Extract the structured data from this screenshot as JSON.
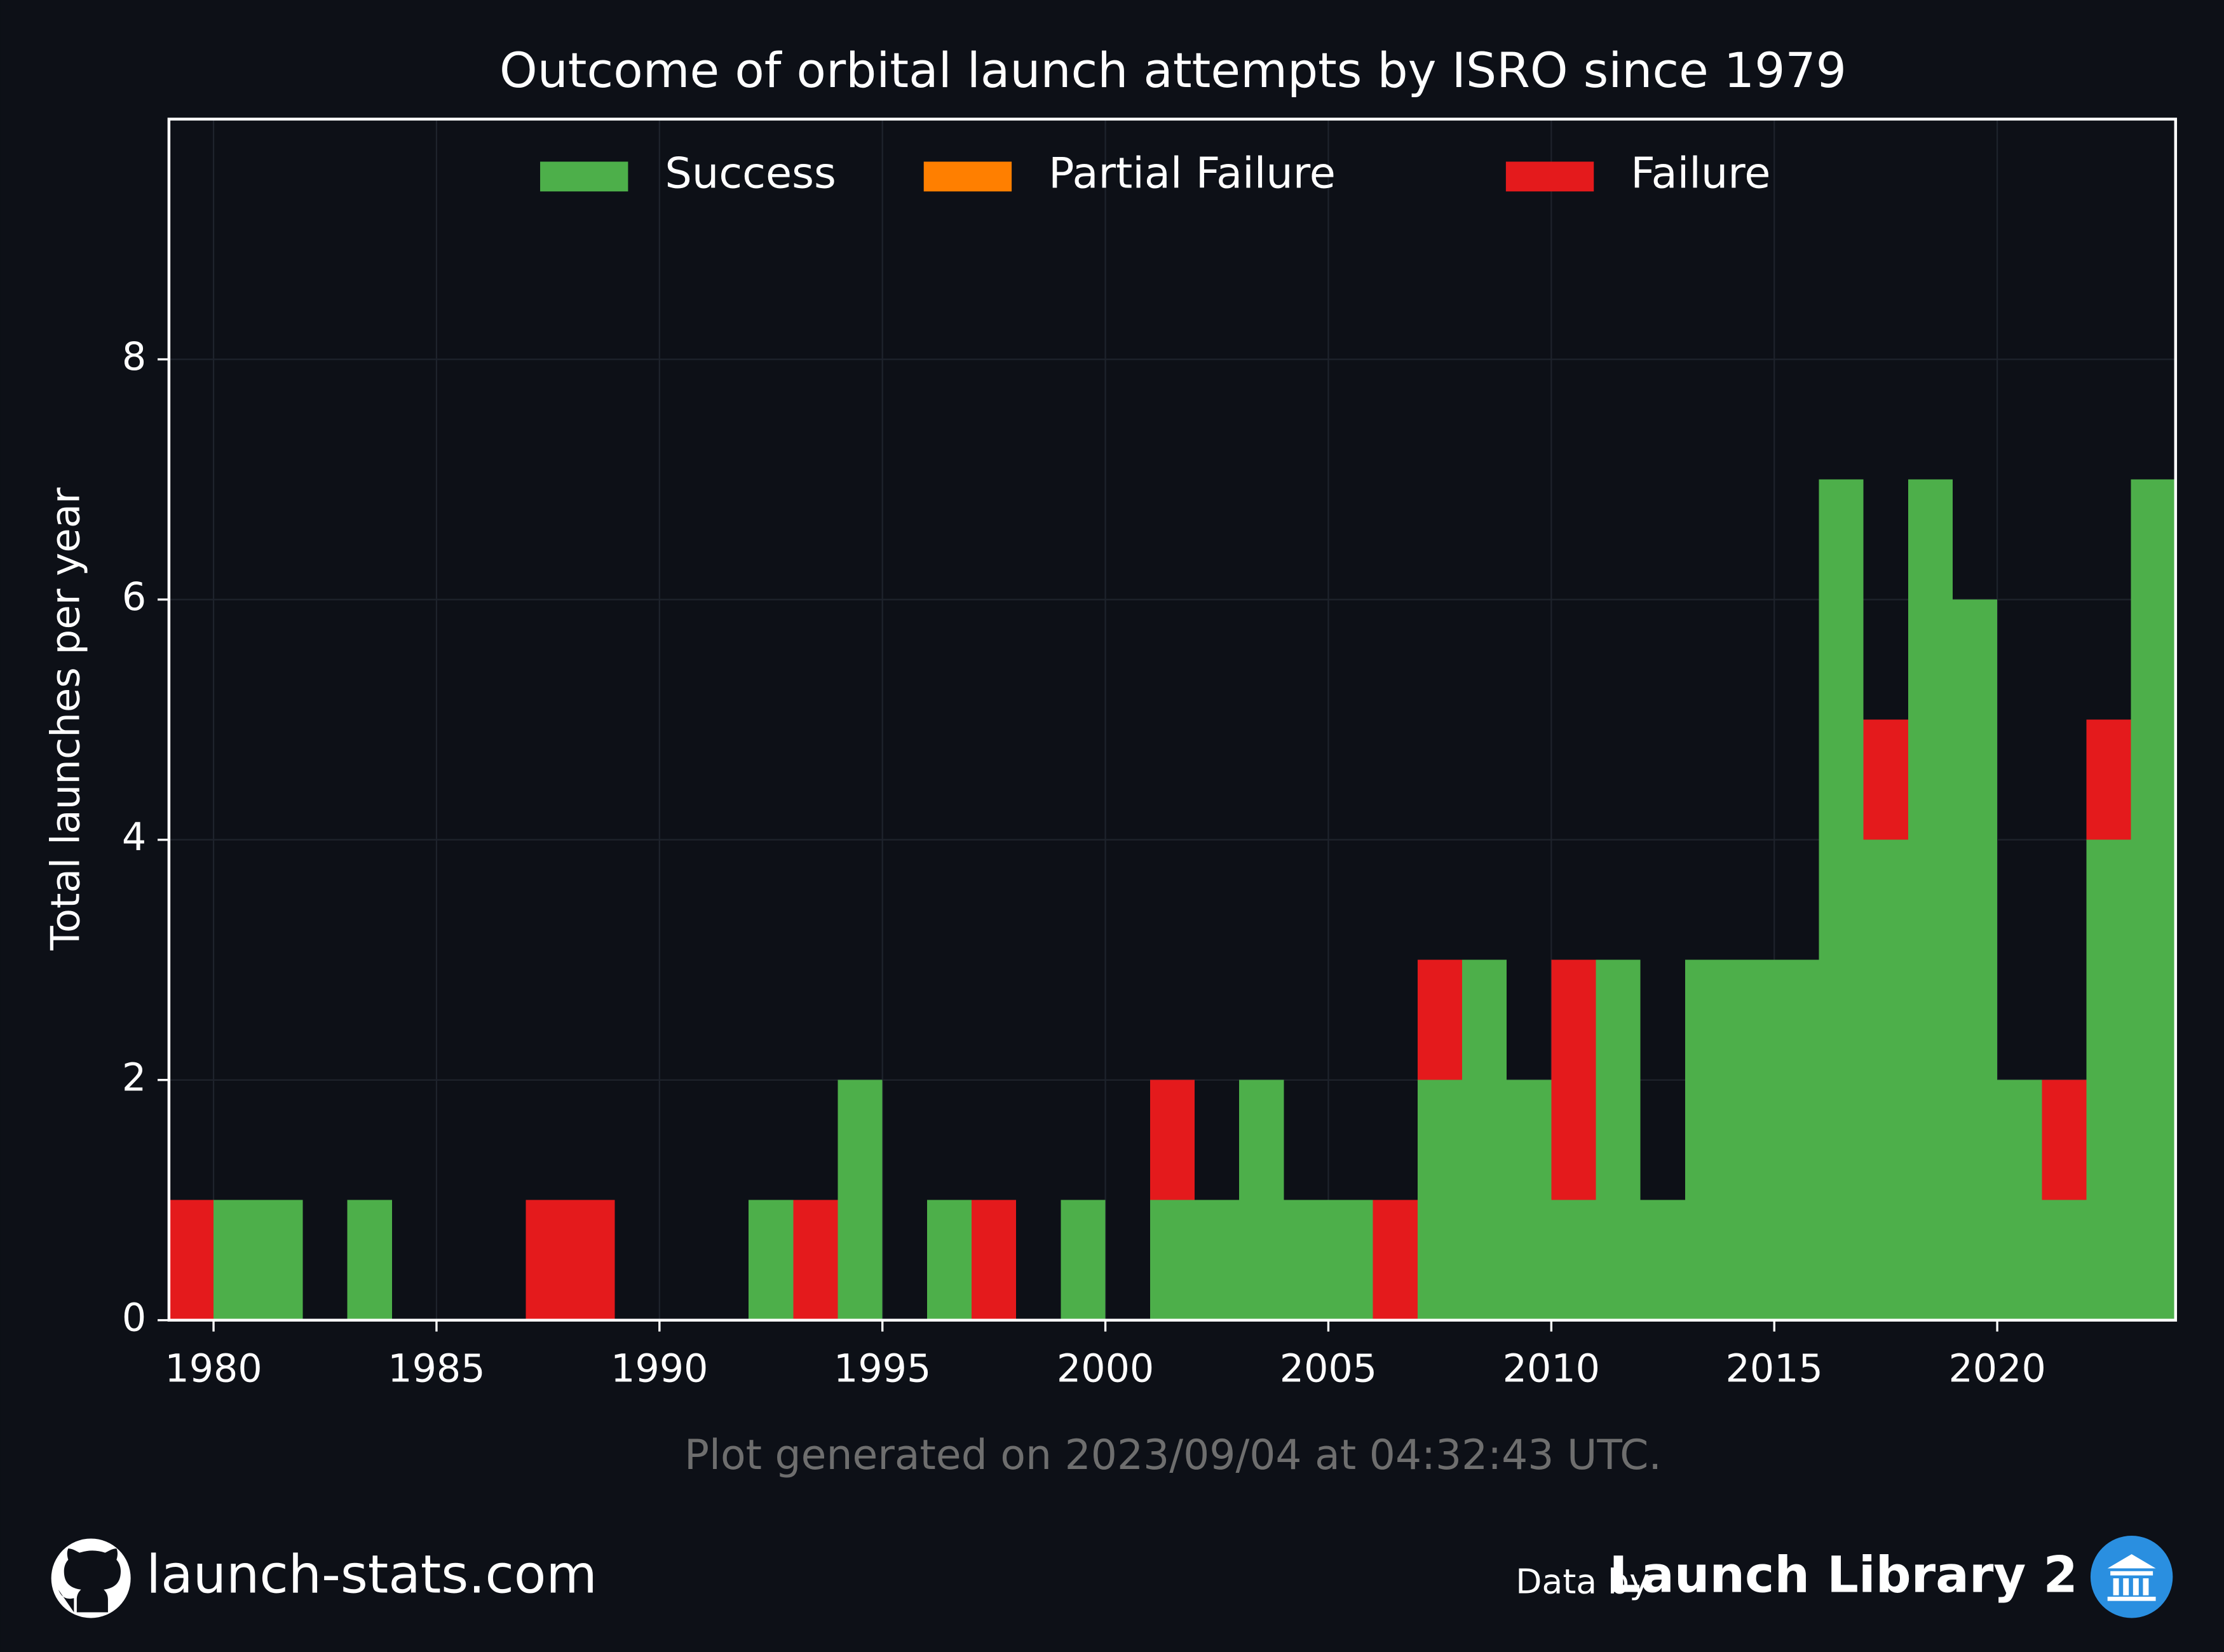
{
  "chart_data": {
    "type": "histogram",
    "title": "Outcome of orbital launch attempts by ISRO since 1979",
    "ylabel": "Total launches per year",
    "note": "Plot generated on 2023/09/04 at 04:32:43 UTC.",
    "bins": [
      1979,
      1980,
      1981,
      1982,
      1983,
      1984,
      1985,
      1986,
      1987,
      1988,
      1989,
      1990,
      1991,
      1992,
      1993,
      1994,
      1995,
      1996,
      1997,
      1998,
      1999,
      2000,
      2001,
      2002,
      2003,
      2004,
      2005,
      2006,
      2007,
      2008,
      2009,
      2010,
      2011,
      2012,
      2013,
      2014,
      2015,
      2016,
      2017,
      2018,
      2019,
      2020,
      2021,
      2022,
      2023,
      2024
    ],
    "series": [
      {
        "name": "Success",
        "color": "#4daf4a",
        "values": [
          0,
          1,
          1,
          0,
          1,
          0,
          0,
          0,
          0,
          0,
          0,
          0,
          0,
          1,
          0,
          2,
          0,
          1,
          0,
          0,
          1,
          0,
          1,
          1,
          2,
          1,
          1,
          0,
          2,
          3,
          2,
          1,
          3,
          1,
          3,
          3,
          3,
          7,
          4,
          7,
          6,
          2,
          1,
          4,
          7
        ]
      },
      {
        "name": "Partial Failure",
        "color": "#ff7f00",
        "values": [
          0,
          0,
          0,
          0,
          0,
          0,
          0,
          0,
          0,
          0,
          0,
          0,
          0,
          0,
          0,
          0,
          0,
          0,
          0,
          0,
          0,
          0,
          0,
          0,
          0,
          0,
          0,
          0,
          0,
          0,
          0,
          0,
          0,
          0,
          0,
          0,
          0,
          0,
          0,
          0,
          0,
          0,
          0,
          0,
          0
        ]
      },
      {
        "name": "Failure",
        "color": "#e41a1c",
        "values": [
          1,
          0,
          0,
          0,
          0,
          0,
          0,
          0,
          1,
          1,
          0,
          0,
          0,
          0,
          1,
          0,
          0,
          0,
          1,
          0,
          0,
          0,
          1,
          0,
          0,
          0,
          0,
          1,
          1,
          0,
          0,
          2,
          0,
          0,
          0,
          0,
          0,
          0,
          1,
          0,
          0,
          0,
          1,
          1,
          0
        ]
      }
    ],
    "stacked": true,
    "xlim": [
      1979,
      2024
    ],
    "xticks": [
      1980,
      1985,
      1990,
      1995,
      2000,
      2005,
      2010,
      2015,
      2020
    ],
    "ylim": [
      0,
      10
    ],
    "yticks": [
      0,
      2,
      4,
      6,
      8
    ],
    "grid": true,
    "legend": "upper center"
  },
  "footer": {
    "site": "launch-stats.com",
    "credit_prefix": "Data by",
    "credit": "Launch Library 2"
  }
}
